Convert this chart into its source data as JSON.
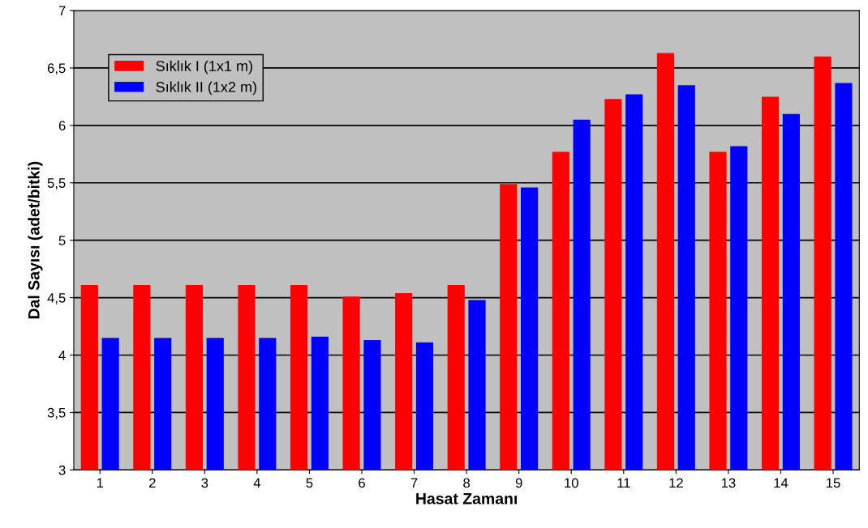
{
  "chart_data": {
    "type": "bar",
    "xlabel": "Hasat Zamanı",
    "ylabel": "Dal Sayısı (adet/bitki)",
    "categories": [
      "1",
      "2",
      "3",
      "4",
      "5",
      "6",
      "7",
      "8",
      "9",
      "10",
      "11",
      "12",
      "13",
      "14",
      "15"
    ],
    "series": [
      {
        "name": "Sıklık I (1x1 m)",
        "color": "#ff0000",
        "values": [
          4.61,
          4.61,
          4.61,
          4.61,
          4.61,
          4.51,
          4.54,
          4.61,
          5.49,
          5.77,
          6.23,
          6.63,
          5.77,
          6.25,
          6.6
        ]
      },
      {
        "name": "Sıklık II (1x2 m)",
        "color": "#0000ff",
        "values": [
          4.15,
          4.15,
          4.15,
          4.15,
          4.16,
          4.13,
          4.11,
          4.48,
          5.46,
          6.05,
          6.27,
          6.35,
          5.82,
          6.1,
          6.37
        ]
      }
    ],
    "ylim": [
      3,
      7
    ],
    "yticks": [
      3,
      {
        "value": 3.5,
        "label": "3,5"
      },
      4,
      {
        "value": 4.5,
        "label": "4,5"
      },
      5,
      {
        "value": 5.5,
        "label": "5,5"
      },
      6,
      {
        "value": 6.5,
        "label": "6,5"
      },
      7
    ],
    "grid": "y",
    "legend": "top left"
  }
}
